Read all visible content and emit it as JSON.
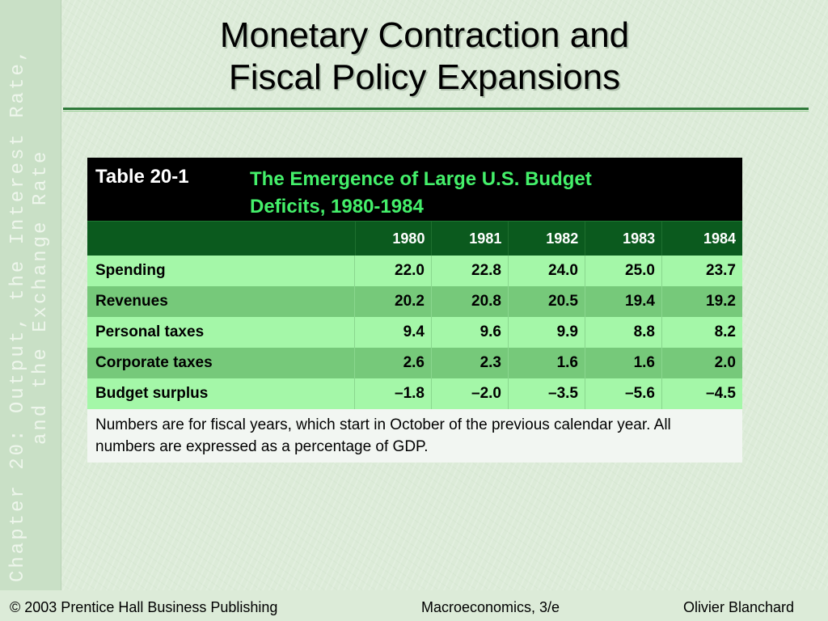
{
  "sidebar": {
    "chapter_line1": "Chapter 20:  Output, the Interest Rate,",
    "chapter_line2": "and the Exchange Rate"
  },
  "slide": {
    "title_line1": "Monetary Contraction and",
    "title_line2": "Fiscal Policy Expansions"
  },
  "table": {
    "number": "Table 20-1",
    "title": "The Emergence of Large U.S. Budget Deficits, 1980-1984",
    "columns": [
      "1980",
      "1981",
      "1982",
      "1983",
      "1984"
    ],
    "rows": [
      {
        "label": "Spending",
        "values": [
          "22.0",
          "22.8",
          "24.0",
          "25.0",
          "23.7"
        ]
      },
      {
        "label": "Revenues",
        "values": [
          "20.2",
          "20.8",
          "20.5",
          "19.4",
          "19.2"
        ]
      },
      {
        "label": "Personal taxes",
        "values": [
          "9.4",
          "9.6",
          "9.9",
          "8.8",
          "8.2"
        ]
      },
      {
        "label": "Corporate taxes",
        "values": [
          "2.6",
          "2.3",
          "1.6",
          "1.6",
          "2.0"
        ]
      },
      {
        "label": "Budget surplus",
        "values": [
          "–1.8",
          "–2.0",
          "–3.5",
          "–5.6",
          "–4.5"
        ]
      }
    ],
    "note": "Numbers are for fiscal years, which start in October of the previous calendar year.  All numbers are expressed as a percentage of GDP."
  },
  "footer": {
    "copyright": "© 2003 Prentice Hall Business Publishing",
    "book": "Macroeconomics, 3/e",
    "author": "Olivier Blanchard"
  },
  "colors": {
    "background": "#dcebd8",
    "table_header": "#000000",
    "table_title": "#44f06a",
    "year_row": "#0b5a1e",
    "row_light": "#a4f7a8",
    "row_dark": "#76c97a"
  }
}
